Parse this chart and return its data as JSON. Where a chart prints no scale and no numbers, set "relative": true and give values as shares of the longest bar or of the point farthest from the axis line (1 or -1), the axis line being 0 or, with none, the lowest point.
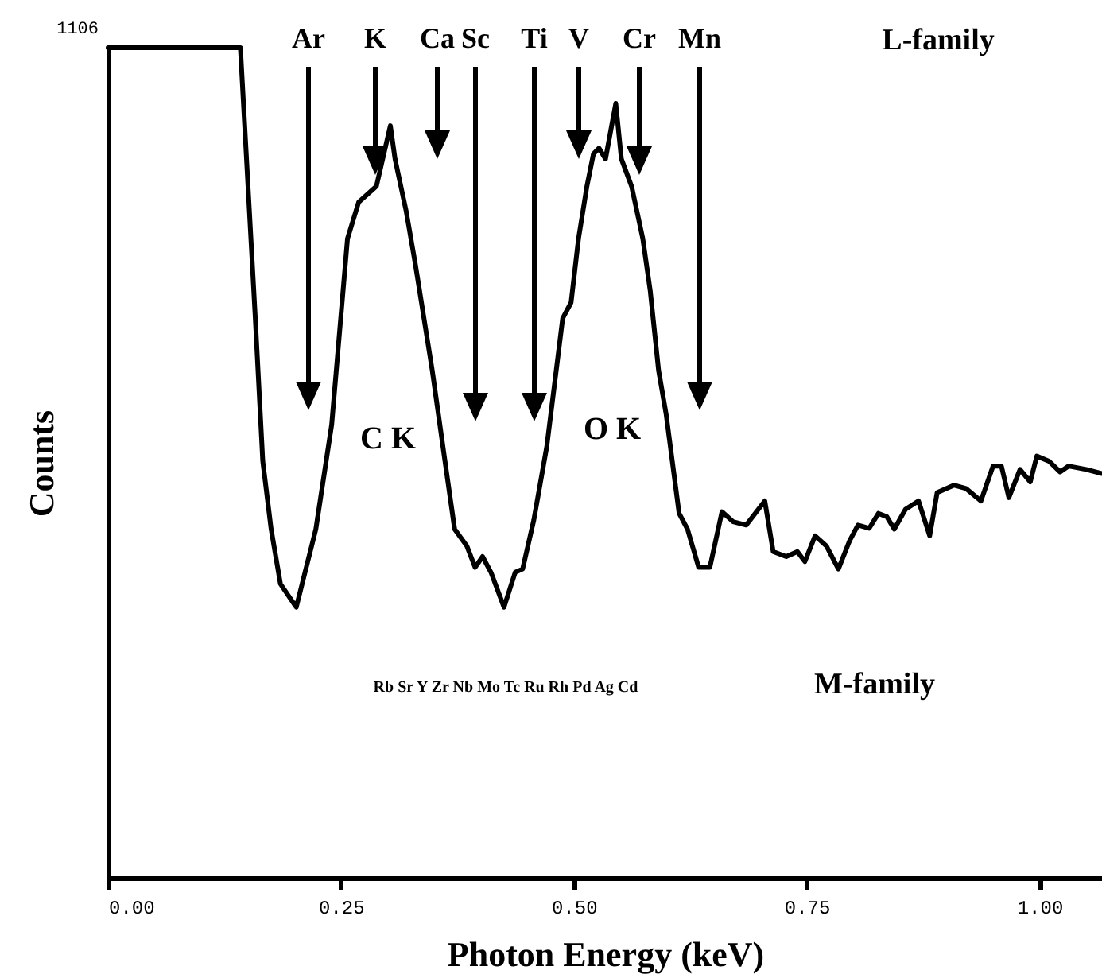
{
  "chart_data": {
    "type": "line",
    "xlabel": "Photon Energy (keV)",
    "ylabel": "Counts",
    "relative": true,
    "xlim": [
      0,
      1.067
    ],
    "xticks": [
      {
        "value": 0,
        "label": "0.00"
      },
      {
        "value": 0.25,
        "label": "0.25"
      },
      {
        "value": 0.5,
        "label": "0.50"
      },
      {
        "value": 0.75,
        "label": "0.75"
      },
      {
        "value": 1,
        "label": "1.00"
      }
    ],
    "color": "#000000",
    "x": [
      0,
      0.142,
      0.158,
      0.166,
      0.175,
      0.185,
      0.202,
      0.223,
      0.24,
      0.257,
      0.269,
      0.288,
      0.296,
      0.303,
      0.308,
      0.32,
      0.33,
      0.348,
      0.36,
      0.372,
      0.385,
      0.394,
      0.402,
      0.411,
      0.425,
      0.437,
      0.445,
      0.457,
      0.471,
      0.488,
      0.497,
      0.505,
      0.514,
      0.521,
      0.527,
      0.534,
      0.545,
      0.551,
      0.562,
      0.574,
      0.582,
      0.591,
      0.599,
      0.613,
      0.622,
      0.634,
      0.646,
      0.659,
      0.671,
      0.685,
      0.705,
      0.714,
      0.728,
      0.74,
      0.748,
      0.759,
      0.771,
      0.784,
      0.796,
      0.805,
      0.817,
      0.827,
      0.836,
      0.844,
      0.856,
      0.87,
      0.882,
      0.89,
      0.908,
      0.921,
      0.937,
      0.95,
      0.959,
      0.967,
      0.979,
      0.99,
      0.997,
      1.01,
      1.022,
      1.031,
      1.05,
      1.067
    ],
    "values": [
      1,
      1,
      0.674,
      0.502,
      0.42,
      0.354,
      0.326,
      0.42,
      0.546,
      0.77,
      0.814,
      0.833,
      0.872,
      0.906,
      0.866,
      0.803,
      0.738,
      0.611,
      0.515,
      0.42,
      0.4,
      0.374,
      0.387,
      0.368,
      0.326,
      0.368,
      0.372,
      0.431,
      0.52,
      0.674,
      0.693,
      0.77,
      0.833,
      0.872,
      0.879,
      0.866,
      0.933,
      0.866,
      0.833,
      0.77,
      0.707,
      0.611,
      0.559,
      0.439,
      0.42,
      0.374,
      0.374,
      0.441,
      0.429,
      0.425,
      0.454,
      0.393,
      0.387,
      0.393,
      0.381,
      0.412,
      0.4,
      0.372,
      0.406,
      0.425,
      0.421,
      0.439,
      0.435,
      0.42,
      0.444,
      0.454,
      0.412,
      0.464,
      0.473,
      0.469,
      0.454,
      0.496,
      0.496,
      0.458,
      0.492,
      0.477,
      0.508,
      0.502,
      0.489,
      0.496,
      0.492,
      0.487
    ],
    "annotations": [
      "Ar",
      "K",
      "Ca",
      "Sc",
      "Ti",
      "V",
      "Cr",
      "Mn",
      "1106",
      "L-family",
      "C K",
      "O K",
      "Rb Sr Y Zr Nb Mo Tc Ru Rh Pd Ag Cd",
      "M-family"
    ]
  }
}
